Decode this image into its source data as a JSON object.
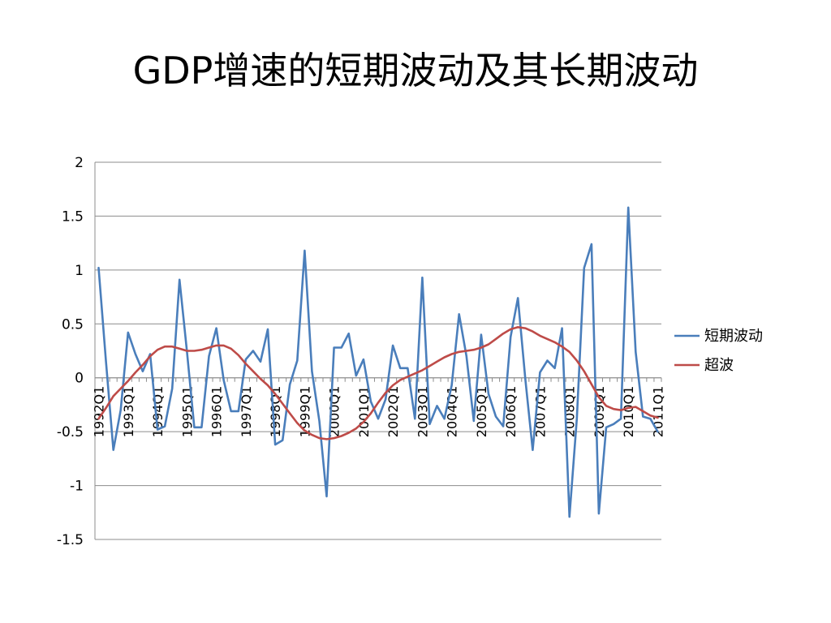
{
  "slide": {
    "title": "GDP增速的短期波动及其长期波动"
  },
  "chart_data": {
    "type": "line",
    "title": "GDP增速的短期波动及其长期波动",
    "xlabel": "",
    "ylabel": "",
    "ylim": [
      -1.5,
      2
    ],
    "yticks": [
      2,
      1.5,
      1,
      0.5,
      0,
      -0.5,
      -1,
      -1.5
    ],
    "ytick_labels": [
      "2",
      "1.5",
      "1",
      "0.5",
      "0",
      "-0.5",
      "-1",
      "-1.5"
    ],
    "grid": true,
    "legend_position": "right",
    "x_tick_labels": [
      "1992Q1",
      "1993Q1",
      "1994Q1",
      "1995Q1",
      "1996Q1",
      "1997Q1",
      "1998Q1",
      "1999Q1",
      "2000Q1",
      "2001Q1",
      "2002Q1",
      "2003Q1",
      "2004Q1",
      "2005Q1",
      "2006Q1",
      "2007Q1",
      "2008Q1",
      "2009Q1",
      "2010Q1",
      "2011Q1"
    ],
    "series": [
      {
        "name": "短期波动",
        "color": "#4a7ebb",
        "values": [
          1.02,
          0.15,
          -0.67,
          -0.3,
          0.42,
          0.22,
          0.06,
          0.22,
          -0.48,
          -0.45,
          -0.1,
          0.91,
          0.25,
          -0.46,
          -0.46,
          0.2,
          0.46,
          -0.02,
          -0.31,
          -0.31,
          0.17,
          0.25,
          0.15,
          0.45,
          -0.62,
          -0.58,
          -0.06,
          0.16,
          1.18,
          0.06,
          -0.4,
          -1.1,
          0.28,
          0.28,
          0.41,
          0.02,
          0.17,
          -0.22,
          -0.38,
          -0.2,
          0.3,
          0.09,
          0.09,
          -0.38,
          0.93,
          -0.43,
          -0.26,
          -0.38,
          -0.07,
          0.59,
          0.2,
          -0.4,
          0.4,
          -0.15,
          -0.36,
          -0.45,
          0.38,
          0.74,
          -0.01,
          -0.67,
          0.05,
          0.16,
          0.09,
          0.46,
          -1.29,
          -0.38,
          1.02,
          1.24,
          -1.26,
          -0.46,
          -0.43,
          -0.38,
          1.58,
          0.24,
          -0.36,
          -0.38,
          -0.5
        ]
      },
      {
        "name": "超波",
        "color": "#be4b48",
        "values": [
          -0.38,
          -0.28,
          -0.17,
          -0.1,
          -0.03,
          0.05,
          0.12,
          0.2,
          0.26,
          0.29,
          0.29,
          0.27,
          0.25,
          0.25,
          0.26,
          0.28,
          0.3,
          0.3,
          0.27,
          0.21,
          0.13,
          0.06,
          -0.01,
          -0.07,
          -0.15,
          -0.24,
          -0.33,
          -0.42,
          -0.49,
          -0.53,
          -0.56,
          -0.57,
          -0.56,
          -0.54,
          -0.51,
          -0.47,
          -0.41,
          -0.33,
          -0.23,
          -0.14,
          -0.07,
          -0.02,
          0.01,
          0.04,
          0.07,
          0.11,
          0.15,
          0.19,
          0.22,
          0.24,
          0.25,
          0.26,
          0.28,
          0.31,
          0.36,
          0.41,
          0.45,
          0.47,
          0.46,
          0.43,
          0.39,
          0.36,
          0.33,
          0.29,
          0.24,
          0.16,
          0.06,
          -0.06,
          -0.18,
          -0.26,
          -0.29,
          -0.3,
          -0.28,
          -0.27,
          -0.31,
          -0.35,
          -0.37
        ]
      }
    ]
  }
}
